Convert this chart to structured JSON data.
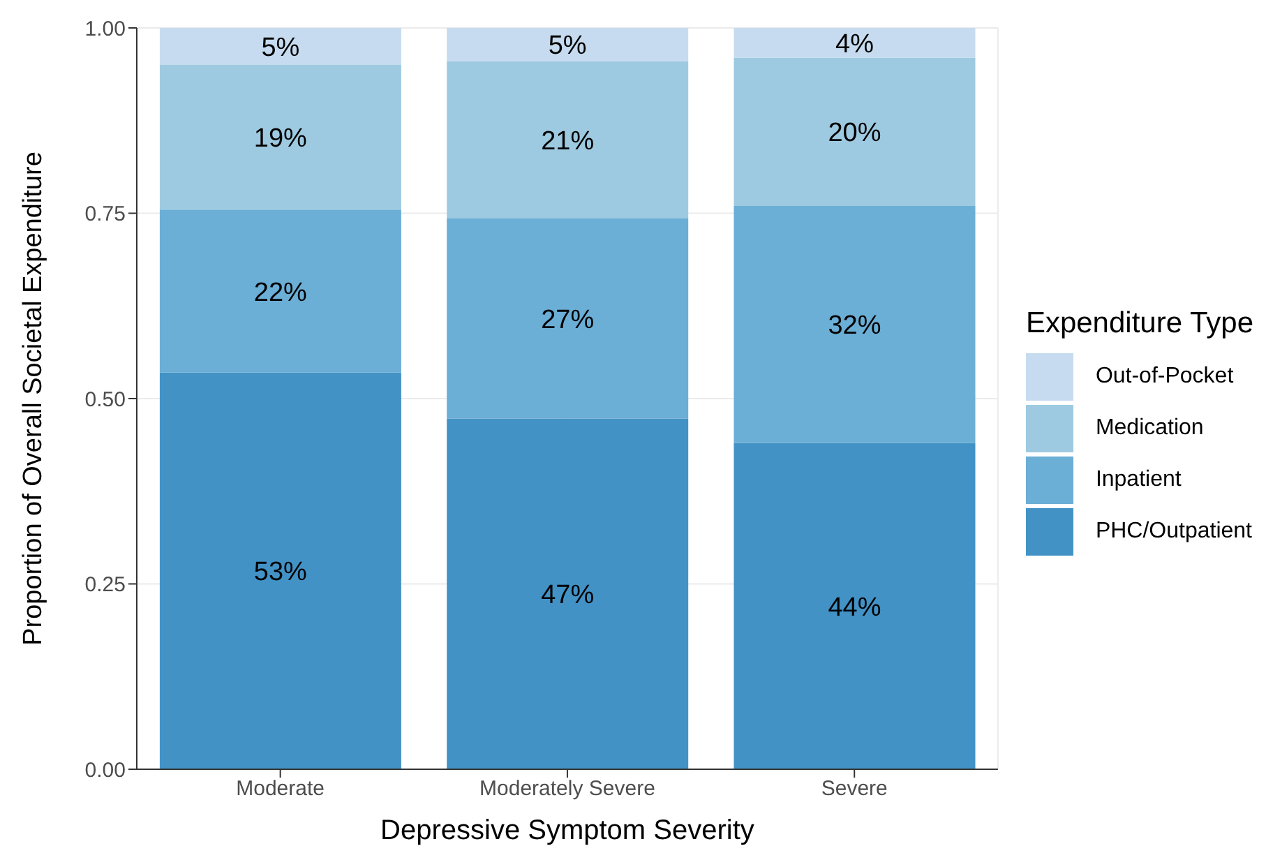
{
  "chart_data": {
    "type": "bar",
    "stacked": true,
    "xlabel": "Depressive Symptom Severity",
    "ylabel": "Proportion of Overall Societal Expenditure",
    "legend_title": "Expenditure Type",
    "categories": [
      "Moderate",
      "Moderately Severe",
      "Severe"
    ],
    "series": [
      {
        "name": "PHC/Outpatient",
        "color": "#4292c6",
        "values": [
          0.535,
          0.473,
          0.44
        ],
        "value_labels": [
          "53%",
          "47%",
          "44%"
        ]
      },
      {
        "name": "Inpatient",
        "color": "#6baed6",
        "values": [
          0.22,
          0.27,
          0.32
        ],
        "value_labels": [
          "22%",
          "27%",
          "32%"
        ]
      },
      {
        "name": "Medication",
        "color": "#9ecae1",
        "values": [
          0.195,
          0.212,
          0.2
        ],
        "value_labels": [
          "19%",
          "21%",
          "20%"
        ]
      },
      {
        "name": "Out-of-Pocket",
        "color": "#c6dbef",
        "values": [
          0.05,
          0.045,
          0.04
        ],
        "value_labels": [
          "5%",
          "5%",
          "4%"
        ]
      }
    ],
    "ylim": [
      0,
      1
    ],
    "yticks": [
      {
        "value": 0,
        "label": "0.00"
      },
      {
        "value": 0.25,
        "label": "0.25"
      },
      {
        "value": 0.5,
        "label": "0.50"
      },
      {
        "value": 0.75,
        "label": "0.75"
      },
      {
        "value": 1,
        "label": "1.00"
      }
    ],
    "grid": true,
    "legend": "right"
  }
}
